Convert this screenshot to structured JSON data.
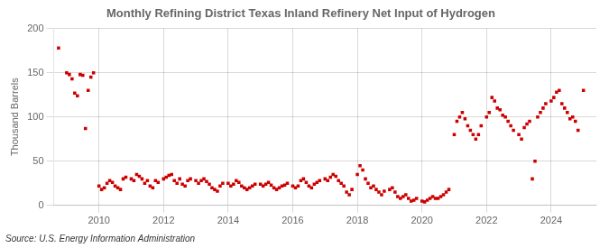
{
  "chart_data": {
    "type": "scatter",
    "title": "Monthly Refining District Texas Inland Refinery Net Input of Hydrogen",
    "ylabel": "Thousand Barrels",
    "annotations": [
      "Source: U.S. Energy Information Administration"
    ],
    "color": "#cc0000",
    "marker": "square",
    "grid": true,
    "xlim": [
      2008.6,
      2025.4
    ],
    "xticks": [
      2010,
      2012,
      2014,
      2016,
      2018,
      2020,
      2022,
      2024
    ],
    "ylim": [
      0,
      200
    ],
    "yticks": [
      0,
      50,
      100,
      150,
      200
    ],
    "x": [
      2008.75,
      2009.0,
      2009.083,
      2009.167,
      2009.25,
      2009.333,
      2009.417,
      2009.5,
      2009.583,
      2009.667,
      2009.75,
      2009.833,
      2010.0,
      2010.083,
      2010.167,
      2010.25,
      2010.333,
      2010.417,
      2010.5,
      2010.583,
      2010.667,
      2010.75,
      2010.833,
      2011.0,
      2011.083,
      2011.167,
      2011.25,
      2011.333,
      2011.417,
      2011.5,
      2011.583,
      2011.667,
      2011.75,
      2011.833,
      2012.0,
      2012.083,
      2012.167,
      2012.25,
      2012.333,
      2012.417,
      2012.5,
      2012.583,
      2012.667,
      2012.75,
      2012.833,
      2013.0,
      2013.083,
      2013.167,
      2013.25,
      2013.333,
      2013.417,
      2013.5,
      2013.583,
      2013.667,
      2013.75,
      2013.833,
      2014.0,
      2014.083,
      2014.167,
      2014.25,
      2014.333,
      2014.417,
      2014.5,
      2014.583,
      2014.667,
      2014.75,
      2014.833,
      2015.0,
      2015.083,
      2015.167,
      2015.25,
      2015.333,
      2015.417,
      2015.5,
      2015.583,
      2015.667,
      2015.75,
      2015.833,
      2016.0,
      2016.083,
      2016.167,
      2016.25,
      2016.333,
      2016.417,
      2016.5,
      2016.583,
      2016.667,
      2016.75,
      2016.833,
      2017.0,
      2017.083,
      2017.167,
      2017.25,
      2017.333,
      2017.417,
      2017.5,
      2017.583,
      2017.667,
      2017.75,
      2017.833,
      2018.0,
      2018.083,
      2018.167,
      2018.25,
      2018.333,
      2018.417,
      2018.5,
      2018.583,
      2018.667,
      2018.75,
      2018.833,
      2019.0,
      2019.083,
      2019.167,
      2019.25,
      2019.333,
      2019.417,
      2019.5,
      2019.583,
      2019.667,
      2019.75,
      2019.833,
      2020.0,
      2020.083,
      2020.167,
      2020.25,
      2020.333,
      2020.417,
      2020.5,
      2020.583,
      2020.667,
      2020.75,
      2020.833,
      2021.0,
      2021.083,
      2021.167,
      2021.25,
      2021.333,
      2021.417,
      2021.5,
      2021.583,
      2021.667,
      2021.75,
      2021.833,
      2022.0,
      2022.083,
      2022.167,
      2022.25,
      2022.333,
      2022.417,
      2022.5,
      2022.583,
      2022.667,
      2022.75,
      2022.833,
      2023.0,
      2023.083,
      2023.167,
      2023.25,
      2023.333,
      2023.417,
      2023.5,
      2023.583,
      2023.667,
      2023.75,
      2023.833,
      2024.0,
      2024.083,
      2024.167,
      2024.25,
      2024.333,
      2024.417,
      2024.5,
      2024.583,
      2024.667,
      2024.75,
      2024.833,
      2025.0
    ],
    "values": [
      178,
      150,
      148,
      143,
      127,
      124,
      148,
      147,
      87,
      130,
      145,
      150,
      22,
      18,
      20,
      25,
      28,
      26,
      22,
      20,
      18,
      30,
      32,
      30,
      28,
      35,
      33,
      30,
      25,
      28,
      22,
      20,
      28,
      26,
      30,
      32,
      34,
      35,
      28,
      25,
      30,
      24,
      22,
      28,
      30,
      28,
      25,
      28,
      30,
      27,
      24,
      20,
      18,
      16,
      22,
      25,
      25,
      22,
      24,
      28,
      26,
      22,
      20,
      18,
      20,
      22,
      24,
      24,
      22,
      24,
      26,
      23,
      20,
      18,
      20,
      22,
      23,
      25,
      22,
      20,
      22,
      28,
      30,
      26,
      22,
      20,
      24,
      26,
      28,
      30,
      28,
      32,
      35,
      33,
      28,
      25,
      22,
      15,
      12,
      18,
      35,
      45,
      40,
      30,
      25,
      20,
      22,
      18,
      15,
      12,
      16,
      18,
      20,
      15,
      10,
      8,
      10,
      12,
      8,
      5,
      6,
      8,
      5,
      4,
      6,
      8,
      10,
      8,
      8,
      10,
      12,
      15,
      18,
      80,
      95,
      100,
      105,
      98,
      90,
      85,
      80,
      75,
      80,
      90,
      100,
      105,
      122,
      118,
      110,
      108,
      102,
      100,
      95,
      90,
      85,
      80,
      75,
      88,
      92,
      95,
      30,
      50,
      100,
      105,
      110,
      115,
      118,
      122,
      128,
      130,
      115,
      110,
      105,
      98,
      100,
      95,
      85,
      130
    ]
  }
}
